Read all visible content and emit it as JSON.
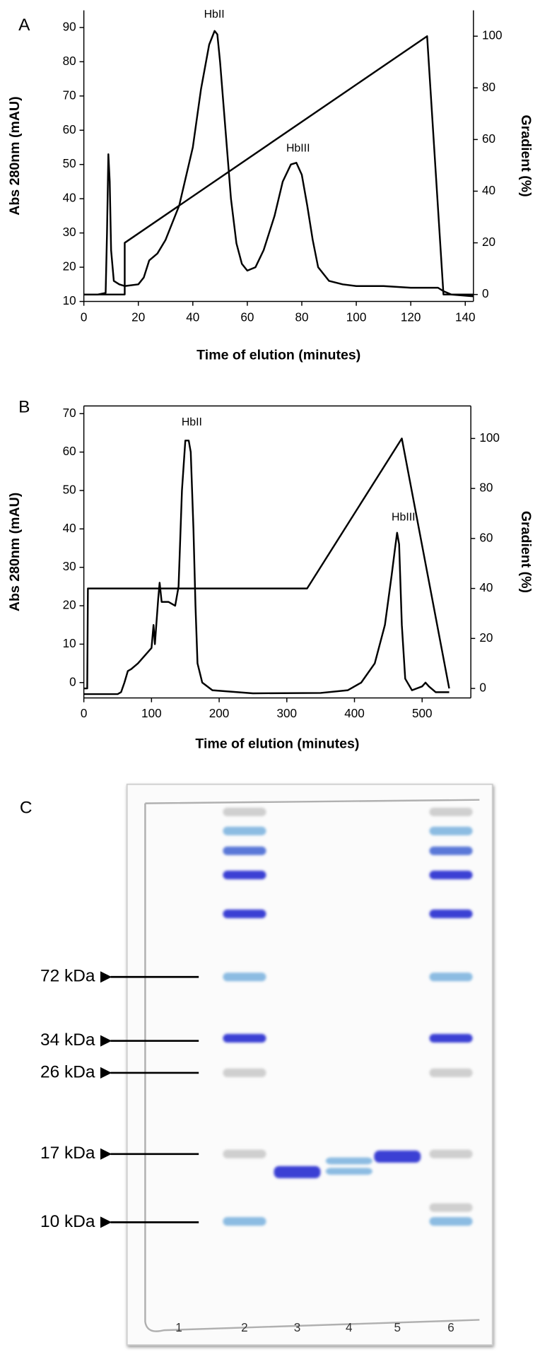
{
  "chart_data": [
    {
      "type": "line",
      "panel": "A",
      "xlabel": "Time of elution (minutes)",
      "ylabel": "Abs 280nm (mAU)",
      "y2label": "Gradient (%)",
      "annotations": [
        "HbII",
        "HbIII"
      ],
      "xlim": [
        0,
        143
      ],
      "xticks": [
        0,
        20,
        40,
        60,
        80,
        100,
        120,
        140
      ],
      "ylim": [
        10,
        95
      ],
      "yticks": [
        10,
        20,
        30,
        40,
        50,
        60,
        70,
        80,
        90
      ],
      "y2lim": [
        -2.7,
        110
      ],
      "y2ticks": [
        0,
        20,
        40,
        60,
        80,
        100
      ],
      "series": [
        {
          "axis": "y",
          "color": "#000000",
          "x": [
            0,
            5,
            8,
            8.5,
            9,
            9.5,
            10,
            11,
            13,
            15,
            20,
            22,
            24,
            27,
            30,
            35,
            40,
            43,
            46,
            48,
            49,
            50,
            52,
            54,
            56,
            58,
            60,
            63,
            66,
            70,
            73,
            76,
            78,
            80,
            82,
            84,
            86,
            90,
            95,
            100,
            110,
            120,
            130,
            132,
            135,
            143
          ],
          "values": [
            12,
            12,
            12.5,
            30,
            53,
            45,
            25,
            16,
            15,
            14.5,
            15,
            17,
            22,
            24,
            28,
            38,
            55,
            72,
            85,
            89,
            88,
            80,
            60,
            40,
            27,
            21,
            19,
            20,
            25,
            35,
            45,
            50,
            50.5,
            47,
            38,
            28,
            20,
            16,
            15,
            14.5,
            14.5,
            14,
            14,
            13,
            12,
            11.5
          ]
        },
        {
          "axis": "y2",
          "color": "#000000",
          "x": [
            0,
            15,
            15,
            126,
            132,
            143
          ],
          "values": [
            0,
            0,
            20,
            100,
            0,
            0
          ]
        }
      ]
    },
    {
      "type": "line",
      "panel": "B",
      "xlabel": "Time of elution (minutes)",
      "ylabel": "Abs 280nm (mAU)",
      "y2label": "Gradient (%)",
      "annotations": [
        "HbII",
        "HbIII"
      ],
      "xlim": [
        0,
        572
      ],
      "xticks": [
        0,
        100,
        200,
        300,
        400,
        500
      ],
      "ylim": [
        -4,
        72
      ],
      "yticks": [
        0,
        10,
        20,
        30,
        40,
        50,
        60,
        70
      ],
      "y2lim": [
        -3.8,
        113
      ],
      "y2ticks": [
        0,
        20,
        40,
        60,
        80,
        100
      ],
      "series": [
        {
          "axis": "y",
          "color": "#000000",
          "x": [
            0,
            50,
            55,
            60,
            65,
            70,
            80,
            90,
            100,
            103,
            105,
            110,
            112,
            115,
            125,
            135,
            140,
            145,
            150,
            155,
            158,
            162,
            165,
            168,
            175,
            190,
            250,
            350,
            390,
            410,
            430,
            445,
            455,
            460,
            463,
            466,
            470,
            475,
            485,
            500,
            505,
            510,
            520,
            540
          ],
          "values": [
            -3,
            -3,
            -2.5,
            0,
            3,
            3.5,
            5,
            7,
            9,
            15,
            10,
            22,
            26,
            21,
            21,
            20,
            25,
            50,
            63,
            63,
            60,
            40,
            20,
            5,
            0,
            -2,
            -2.8,
            -2.7,
            -2,
            0,
            5,
            15,
            28,
            35,
            39,
            36,
            15,
            1,
            -2,
            -1,
            0,
            -1,
            -2.5,
            -2.5
          ]
        },
        {
          "axis": "y2",
          "color": "#000000",
          "x": [
            0,
            5,
            6,
            330,
            470,
            540
          ],
          "values": [
            0,
            0,
            40,
            40,
            100,
            0
          ]
        }
      ]
    }
  ],
  "gel": {
    "panel": "C",
    "markers": [
      "72 kDa",
      "34 kDa",
      "26 kDa",
      "17 kDa",
      "10 kDa"
    ],
    "lanes": [
      "1",
      "2",
      "3",
      "4",
      "5",
      "6"
    ]
  }
}
